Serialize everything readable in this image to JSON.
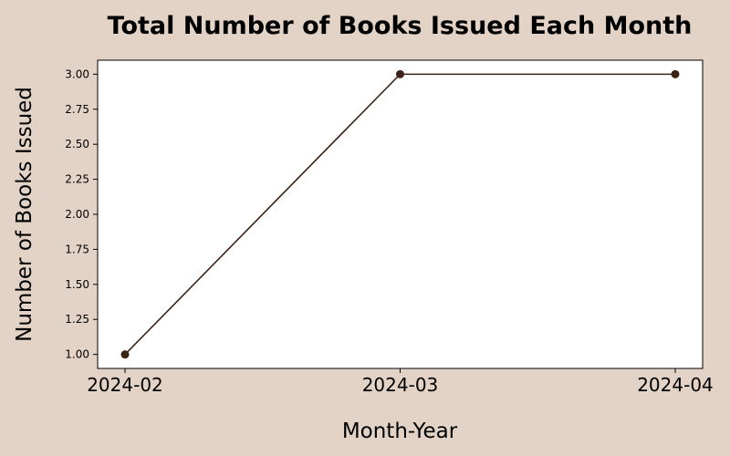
{
  "chart_data": {
    "type": "line",
    "title": "Total Number of Books Issued Each Month",
    "xlabel": "Month-Year",
    "ylabel": "Number of Books Issued",
    "categories": [
      "2024-02",
      "2024-03",
      "2024-04"
    ],
    "series": [
      {
        "values": [
          1,
          3,
          3
        ]
      }
    ],
    "ylim": [
      0.9,
      3.1
    ],
    "y_ticks": [
      "1.00",
      "1.25",
      "1.50",
      "1.75",
      "2.00",
      "2.25",
      "2.50",
      "2.75",
      "3.00"
    ],
    "grid": false,
    "legend": "none"
  },
  "colors": {
    "background": "#e3d3c6",
    "plot_area": "#ffffff",
    "line": "#3b2316",
    "marker": "#3b2316",
    "axis": "#000000"
  }
}
